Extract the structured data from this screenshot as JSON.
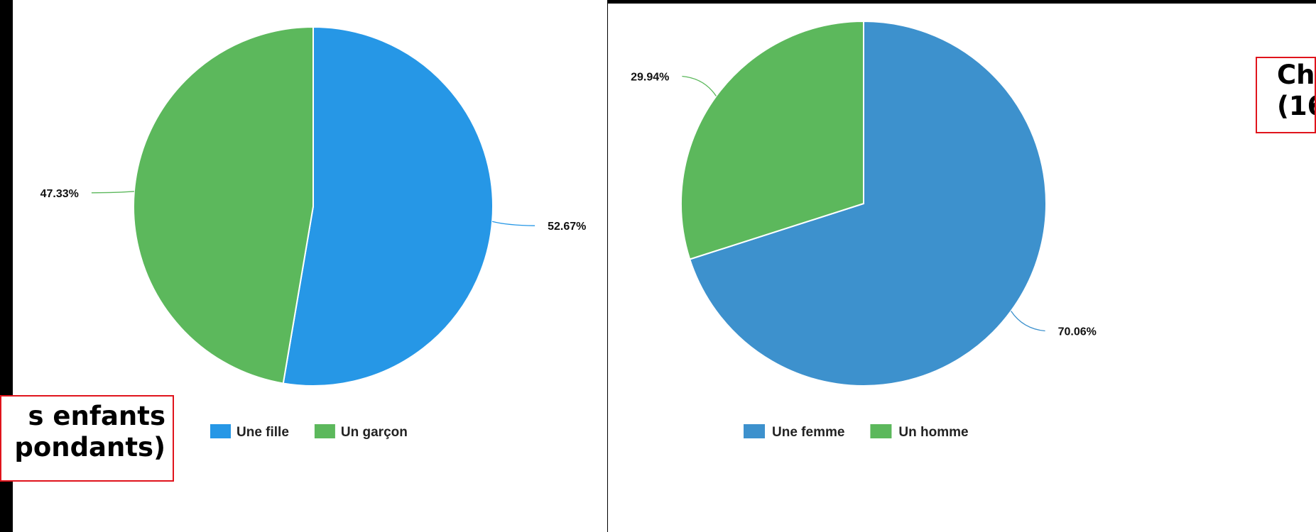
{
  "chart_data": [
    {
      "type": "pie",
      "slices": [
        {
          "label": "Une fille",
          "value": 52.67,
          "display": "52.67%",
          "color": "#2697e6"
        },
        {
          "label": "Un garçon",
          "value": 47.33,
          "display": "47.33%",
          "color": "#5cb85c"
        }
      ],
      "legend": [
        "Une fille",
        "Un garçon"
      ],
      "legend_position": "bottom",
      "start_angle_deg": 0,
      "direction": "clockwise"
    },
    {
      "type": "pie",
      "slices": [
        {
          "label": "Une femme",
          "value": 70.06,
          "display": "70.06%",
          "color": "#3d91cd"
        },
        {
          "label": "Un homme",
          "value": 29.94,
          "display": "29.94%",
          "color": "#5cb85c"
        }
      ],
      "legend": [
        "Une femme",
        "Un homme"
      ],
      "legend_position": "bottom",
      "start_angle_deg": 0,
      "direction": "clockwise"
    }
  ],
  "callouts": {
    "left": {
      "line1": "s enfants",
      "line2": "pondants)"
    },
    "right": {
      "line1": "Ch",
      "line2": "(16"
    }
  },
  "colors": {
    "callout_border": "#e0141c",
    "leader_text": "#111111"
  }
}
